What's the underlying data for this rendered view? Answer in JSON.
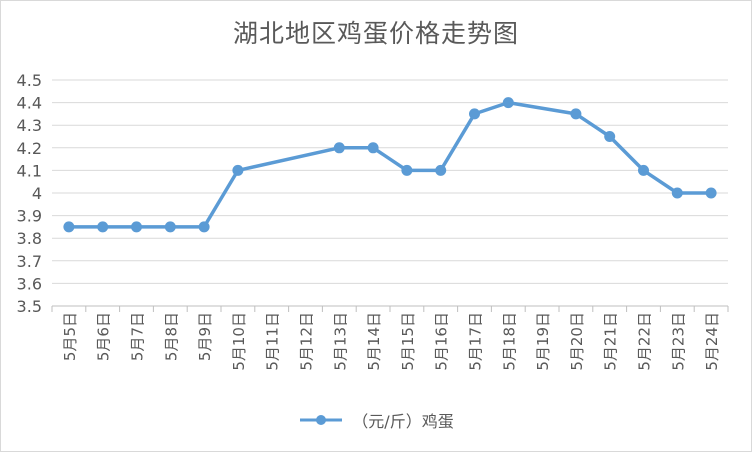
{
  "chart_data": {
    "type": "line",
    "title": "湖北地区鸡蛋价格走势图",
    "categories": [
      "5月5日",
      "5月6日",
      "5月7日",
      "5月8日",
      "5月9日",
      "5月10日",
      "5月11日",
      "5月12日",
      "5月13日",
      "5月14日",
      "5月15日",
      "5月16日",
      "5月17日",
      "5月18日",
      "5月19日",
      "5月20日",
      "5月21日",
      "5月22日",
      "5月23日",
      "5月24日"
    ],
    "series": [
      {
        "name": "（元/斤）鸡蛋",
        "color": "#5b9bd5",
        "values": [
          3.85,
          3.85,
          3.85,
          3.85,
          3.85,
          4.1,
          null,
          null,
          4.2,
          4.2,
          4.1,
          4.1,
          4.35,
          4.4,
          null,
          4.35,
          4.25,
          4.1,
          4.0,
          4.0
        ]
      }
    ],
    "ylim": [
      3.5,
      4.5
    ],
    "yticks": [
      "3.5",
      "3.6",
      "3.7",
      "3.8",
      "3.9",
      "4",
      "4.1",
      "4.2",
      "4.3",
      "4.4",
      "4.5"
    ],
    "grid": true,
    "legend": "bottom"
  }
}
